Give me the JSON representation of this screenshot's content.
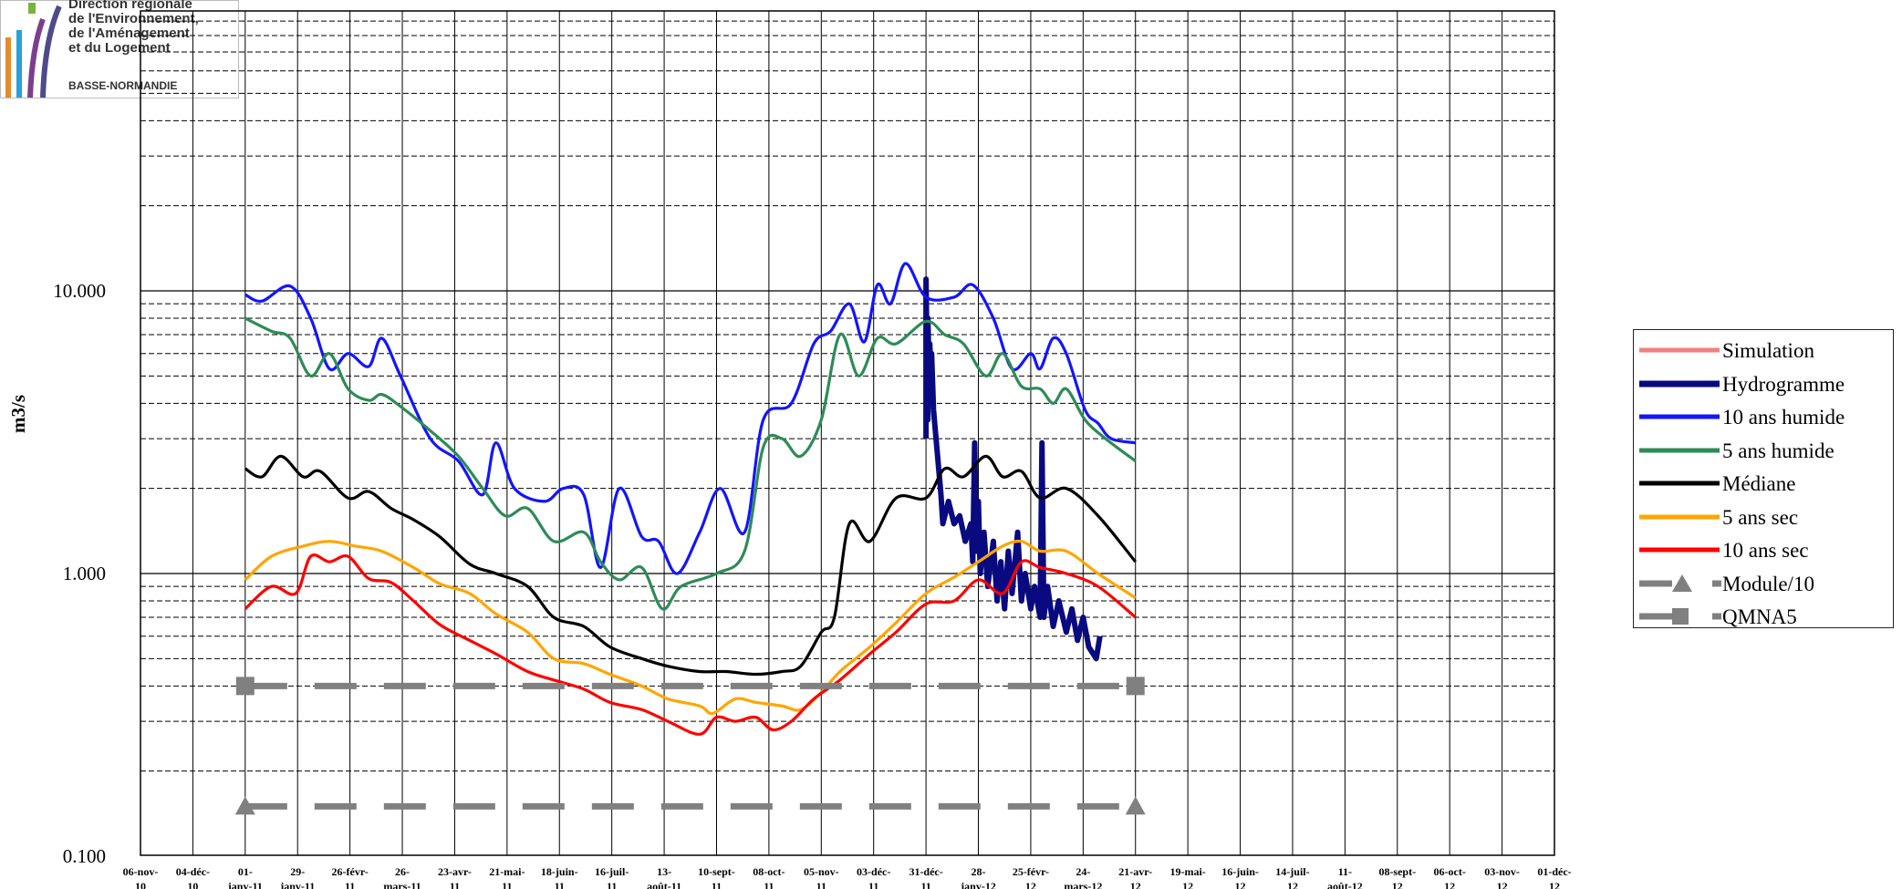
{
  "logo": {
    "lines": [
      "Direction régionale",
      "de l'Environnement,",
      "de l'Aménagement",
      "et du Logement"
    ],
    "region": "BASSE-NORMANDIE"
  },
  "chart_data": {
    "type": "line",
    "yscale": "log",
    "ylim": [
      0.1,
      20
    ],
    "ylabel": "m3/s",
    "ytick_labels": [
      "10.000",
      "1.000",
      "0.100"
    ],
    "ytick_values": [
      10,
      1,
      0.1
    ],
    "grid": true,
    "legend_position": "right",
    "x_tick_labels": [
      [
        "06-nov-",
        "10"
      ],
      [
        "04-déc-",
        "10"
      ],
      [
        "01-",
        "janv-11"
      ],
      [
        "29-",
        "janv-11"
      ],
      [
        "26-févr-",
        "11"
      ],
      [
        "26-",
        "mars-11"
      ],
      [
        "23-avr-",
        "11"
      ],
      [
        "21-mai-",
        "11"
      ],
      [
        "18-juin-",
        "11"
      ],
      [
        "16-juil-",
        "11"
      ],
      [
        "13-",
        "août-11"
      ],
      [
        "10-sept-",
        "11"
      ],
      [
        "08-oct-",
        "11"
      ],
      [
        "05-nov-",
        "11"
      ],
      [
        "03-déc-",
        "11"
      ],
      [
        "31-déc-",
        "11"
      ],
      [
        "28-",
        "janv-12"
      ],
      [
        "25-févr-",
        "12"
      ],
      [
        "24-",
        "mars-12"
      ],
      [
        "21-avr-",
        "12"
      ],
      [
        "19-mai-",
        "12"
      ],
      [
        "16-juin-",
        "12"
      ],
      [
        "14-juil-",
        "12"
      ],
      [
        "11-",
        "août-12"
      ],
      [
        "08-sept-",
        "12"
      ],
      [
        "06-oct-",
        "12"
      ],
      [
        "03-nov-",
        "12"
      ],
      [
        "01-déc-",
        "12"
      ]
    ],
    "x_tick_dates": [
      "2010-11-06",
      "2010-12-04",
      "2011-01-01",
      "2011-01-29",
      "2011-02-26",
      "2011-03-26",
      "2011-04-23",
      "2011-05-21",
      "2011-06-18",
      "2011-07-16",
      "2011-08-13",
      "2011-09-10",
      "2011-10-08",
      "2011-11-05",
      "2011-12-03",
      "2011-12-31",
      "2012-01-28",
      "2012-02-25",
      "2012-03-24",
      "2012-04-21",
      "2012-05-19",
      "2012-06-16",
      "2012-07-14",
      "2012-08-11",
      "2012-09-08",
      "2012-10-06",
      "2012-11-03",
      "2012-12-01"
    ],
    "xlim": [
      "2010-11-06",
      "2012-12-01"
    ],
    "series": [
      {
        "name": "Simulation",
        "color": "#f08080",
        "style": "solid",
        "x": [],
        "y": []
      },
      {
        "name": "Hydrogramme",
        "color": "#0a0a80",
        "style": "solid-thick",
        "x": [
          "2011-12-31",
          "2011-12-31",
          "2012-01-01",
          "2012-01-01",
          "2012-01-02",
          "2012-01-02",
          "2012-01-03",
          "2012-01-03",
          "2012-01-04",
          "2012-01-08",
          "2012-01-09",
          "2012-01-12",
          "2012-01-15",
          "2012-01-18",
          "2012-01-21",
          "2012-01-24",
          "2012-01-25",
          "2012-01-26",
          "2012-01-27",
          "2012-01-28",
          "2012-01-29",
          "2012-01-31",
          "2012-02-02",
          "2012-02-05",
          "2012-02-07",
          "2012-02-09",
          "2012-02-11",
          "2012-02-13",
          "2012-02-15",
          "2012-02-18",
          "2012-02-20",
          "2012-02-22",
          "2012-02-25",
          "2012-02-27",
          "2012-03-01",
          "2012-03-02",
          "2012-03-03",
          "2012-03-05",
          "2012-03-08",
          "2012-03-11",
          "2012-03-15",
          "2012-03-18",
          "2012-03-21",
          "2012-03-24",
          "2012-03-27",
          "2012-03-31",
          "2012-04-02"
        ],
        "y": [
          3.0,
          11.0,
          3.5,
          8.0,
          4.0,
          6.5,
          4.5,
          6.0,
          3.8,
          1.9,
          1.5,
          1.8,
          1.5,
          1.6,
          1.3,
          1.5,
          1.1,
          2.9,
          1.2,
          1.8,
          1.0,
          1.4,
          0.9,
          1.3,
          0.8,
          1.1,
          0.75,
          1.2,
          0.85,
          1.4,
          0.8,
          1.0,
          0.75,
          0.9,
          0.7,
          2.9,
          0.7,
          0.9,
          0.65,
          0.8,
          0.62,
          0.75,
          0.58,
          0.7,
          0.55,
          0.5,
          0.6
        ]
      },
      {
        "name": "10 ans humide",
        "color": "#1414ff",
        "style": "solid",
        "x": [
          "2011-01-01",
          "2011-01-10",
          "2011-01-25",
          "2011-02-05",
          "2011-02-15",
          "2011-02-25",
          "2011-03-08",
          "2011-03-15",
          "2011-03-25",
          "2011-04-10",
          "2011-04-25",
          "2011-05-08",
          "2011-05-15",
          "2011-05-25",
          "2011-06-10",
          "2011-06-20",
          "2011-07-01",
          "2011-07-10",
          "2011-07-20",
          "2011-08-01",
          "2011-08-10",
          "2011-08-20",
          "2011-09-01",
          "2011-09-12",
          "2011-09-25",
          "2011-10-05",
          "2011-10-20",
          "2011-11-01",
          "2011-11-10",
          "2011-11-20",
          "2011-11-28",
          "2011-12-05",
          "2011-12-12",
          "2011-12-20",
          "2011-12-31",
          "2012-01-15",
          "2012-01-25",
          "2012-02-05",
          "2012-02-15",
          "2012-02-25",
          "2012-03-01",
          "2012-03-08",
          "2012-03-15",
          "2012-03-25",
          "2012-04-01",
          "2012-04-08",
          "2012-04-21"
        ],
        "y": [
          9.7,
          9.2,
          10.4,
          8.0,
          5.3,
          6.0,
          5.4,
          6.8,
          5.0,
          3.0,
          2.5,
          1.9,
          2.9,
          2.0,
          1.8,
          2.0,
          1.9,
          1.05,
          2.0,
          1.35,
          1.3,
          1.0,
          1.4,
          2.0,
          1.4,
          3.5,
          4.0,
          6.5,
          7.2,
          9.0,
          6.6,
          10.5,
          9.0,
          12.5,
          9.5,
          9.5,
          10.5,
          8.0,
          5.3,
          6.0,
          5.3,
          6.8,
          6.0,
          3.8,
          3.4,
          3.0,
          2.9
        ]
      },
      {
        "name": "5 ans humide",
        "color": "#2e8b57",
        "style": "solid",
        "x": [
          "2011-01-01",
          "2011-01-15",
          "2011-01-25",
          "2011-02-05",
          "2011-02-15",
          "2011-02-25",
          "2011-03-08",
          "2011-03-15",
          "2011-03-25",
          "2011-04-10",
          "2011-04-25",
          "2011-05-08",
          "2011-05-20",
          "2011-06-01",
          "2011-06-15",
          "2011-07-01",
          "2011-07-10",
          "2011-07-20",
          "2011-08-01",
          "2011-08-12",
          "2011-08-22",
          "2011-09-10",
          "2011-09-25",
          "2011-10-05",
          "2011-10-15",
          "2011-10-25",
          "2011-11-05",
          "2011-11-15",
          "2011-11-25",
          "2011-12-05",
          "2011-12-15",
          "2011-12-31",
          "2012-01-10",
          "2012-01-20",
          "2012-02-01",
          "2012-02-10",
          "2012-02-20",
          "2012-03-01",
          "2012-03-08",
          "2012-03-15",
          "2012-03-25",
          "2012-04-05",
          "2012-04-21"
        ],
        "y": [
          8.0,
          7.2,
          6.8,
          5.0,
          6.0,
          4.5,
          4.1,
          4.3,
          3.9,
          3.2,
          2.6,
          2.0,
          1.6,
          1.7,
          1.3,
          1.4,
          1.1,
          0.95,
          1.05,
          0.75,
          0.9,
          1.0,
          1.2,
          2.8,
          3.0,
          2.6,
          3.5,
          7.0,
          5.0,
          6.8,
          6.5,
          7.8,
          7.0,
          6.5,
          5.0,
          6.0,
          4.6,
          4.5,
          4.0,
          4.5,
          3.5,
          3.0,
          2.5
        ]
      },
      {
        "name": "Médiane",
        "color": "#000000",
        "style": "solid",
        "x": [
          "2011-01-01",
          "2011-01-10",
          "2011-01-20",
          "2011-02-01",
          "2011-02-10",
          "2011-02-25",
          "2011-03-08",
          "2011-03-20",
          "2011-04-01",
          "2011-04-15",
          "2011-05-01",
          "2011-05-15",
          "2011-06-01",
          "2011-06-15",
          "2011-07-01",
          "2011-07-15",
          "2011-08-01",
          "2011-08-15",
          "2011-09-01",
          "2011-09-15",
          "2011-10-01",
          "2011-10-15",
          "2011-10-25",
          "2011-11-05",
          "2011-11-12",
          "2011-11-20",
          "2011-12-01",
          "2011-12-15",
          "2011-12-31",
          "2012-01-10",
          "2012-01-20",
          "2012-02-01",
          "2012-02-10",
          "2012-02-20",
          "2012-03-01",
          "2012-03-15",
          "2012-04-01",
          "2012-04-21"
        ],
        "y": [
          2.35,
          2.2,
          2.6,
          2.2,
          2.3,
          1.85,
          1.95,
          1.7,
          1.55,
          1.35,
          1.08,
          1.0,
          0.9,
          0.7,
          0.65,
          0.55,
          0.5,
          0.47,
          0.45,
          0.45,
          0.44,
          0.45,
          0.47,
          0.62,
          0.7,
          1.5,
          1.3,
          1.85,
          1.85,
          2.35,
          2.2,
          2.6,
          2.2,
          2.3,
          1.85,
          2.0,
          1.6,
          1.1
        ]
      },
      {
        "name": "5 ans sec",
        "color": "#ffa500",
        "style": "solid",
        "x": [
          "2011-01-01",
          "2011-01-15",
          "2011-02-01",
          "2011-02-15",
          "2011-03-01",
          "2011-03-15",
          "2011-04-01",
          "2011-04-15",
          "2011-05-01",
          "2011-05-15",
          "2011-06-01",
          "2011-06-15",
          "2011-07-01",
          "2011-07-15",
          "2011-08-01",
          "2011-08-15",
          "2011-09-01",
          "2011-09-08",
          "2011-09-20",
          "2011-10-01",
          "2011-10-15",
          "2011-10-25",
          "2011-11-05",
          "2011-11-15",
          "2011-12-01",
          "2011-12-15",
          "2011-12-31",
          "2012-01-15",
          "2012-01-28",
          "2012-02-10",
          "2012-02-20",
          "2012-03-01",
          "2012-03-15",
          "2012-04-01",
          "2012-04-21"
        ],
        "y": [
          0.95,
          1.15,
          1.25,
          1.3,
          1.25,
          1.2,
          1.05,
          0.92,
          0.85,
          0.72,
          0.62,
          0.5,
          0.48,
          0.44,
          0.4,
          0.36,
          0.34,
          0.32,
          0.36,
          0.35,
          0.34,
          0.33,
          0.38,
          0.45,
          0.55,
          0.67,
          0.85,
          0.97,
          1.1,
          1.25,
          1.3,
          1.2,
          1.2,
          1.0,
          0.82
        ]
      },
      {
        "name": "10 ans sec",
        "color": "#ff0000",
        "style": "solid",
        "x": [
          "2011-01-01",
          "2011-01-15",
          "2011-01-28",
          "2011-02-05",
          "2011-02-15",
          "2011-02-25",
          "2011-03-08",
          "2011-03-20",
          "2011-04-01",
          "2011-04-15",
          "2011-05-01",
          "2011-05-15",
          "2011-06-01",
          "2011-06-15",
          "2011-07-01",
          "2011-07-15",
          "2011-08-01",
          "2011-08-15",
          "2011-09-01",
          "2011-09-10",
          "2011-09-20",
          "2011-10-01",
          "2011-10-10",
          "2011-10-20",
          "2011-11-01",
          "2011-11-15",
          "2011-12-01",
          "2011-12-15",
          "2011-12-31",
          "2012-01-15",
          "2012-01-28",
          "2012-02-10",
          "2012-02-20",
          "2012-03-01",
          "2012-03-15",
          "2012-04-01",
          "2012-04-21"
        ],
        "y": [
          0.75,
          0.9,
          0.85,
          1.15,
          1.1,
          1.15,
          0.96,
          0.93,
          0.8,
          0.66,
          0.58,
          0.52,
          0.45,
          0.42,
          0.39,
          0.35,
          0.33,
          0.3,
          0.27,
          0.31,
          0.3,
          0.31,
          0.28,
          0.3,
          0.36,
          0.42,
          0.52,
          0.62,
          0.78,
          0.8,
          0.95,
          0.85,
          1.1,
          1.05,
          1.0,
          0.9,
          0.7
        ]
      },
      {
        "name": "Module/10",
        "color": "#808080",
        "style": "dashed",
        "marker": "triangle",
        "x": [
          "2011-01-01",
          "2012-04-21"
        ],
        "y": [
          0.15,
          0.15
        ]
      },
      {
        "name": "QMNA5",
        "color": "#808080",
        "style": "dashed",
        "marker": "square",
        "x": [
          "2011-01-01",
          "2012-04-21"
        ],
        "y": [
          0.4,
          0.4
        ]
      }
    ]
  }
}
